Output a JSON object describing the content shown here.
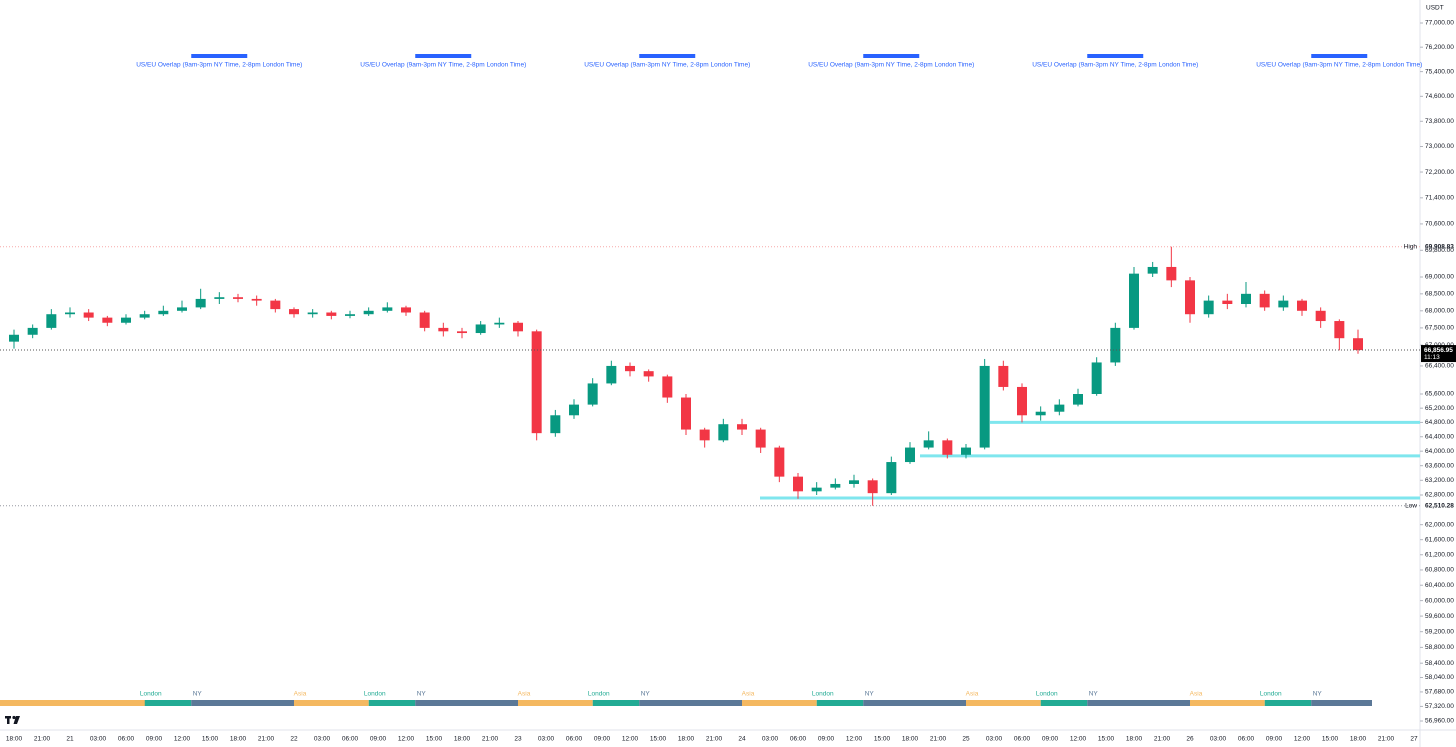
{
  "chart_data": {
    "type": "candlestick",
    "currency": "USDT",
    "log_scale": true,
    "grid": false,
    "up_color": "#089981",
    "down_color": "#f23645",
    "ylim": [
      56960,
      77000
    ],
    "yticks": [
      {
        "value": 77000,
        "label": "77,000.00"
      },
      {
        "value": 76200,
        "label": "76,200.00"
      },
      {
        "value": 75400,
        "label": "75,400.00"
      },
      {
        "value": 74600,
        "label": "74,600.00"
      },
      {
        "value": 73800,
        "label": "73,800.00"
      },
      {
        "value": 73000,
        "label": "73,000.00"
      },
      {
        "value": 72200,
        "label": "72,200.00"
      },
      {
        "value": 71400,
        "label": "71,400.00"
      },
      {
        "value": 70600,
        "label": "70,600.00"
      },
      {
        "value": 69800,
        "label": "69,800.00"
      },
      {
        "value": 69000,
        "label": "69,000.00"
      },
      {
        "value": 68500,
        "label": "68,500.00"
      },
      {
        "value": 68000,
        "label": "68,000.00"
      },
      {
        "value": 67500,
        "label": "67,500.00"
      },
      {
        "value": 67000,
        "label": "67,000.00"
      },
      {
        "value": 66400,
        "label": "66,400.00"
      },
      {
        "value": 65600,
        "label": "65,600.00"
      },
      {
        "value": 65200,
        "label": "65,200.00"
      },
      {
        "value": 64800,
        "label": "64,800.00"
      },
      {
        "value": 64400,
        "label": "64,400.00"
      },
      {
        "value": 64000,
        "label": "64,000.00"
      },
      {
        "value": 63600,
        "label": "63,600.00"
      },
      {
        "value": 63200,
        "label": "63,200.00"
      },
      {
        "value": 62800,
        "label": "62,800.00"
      },
      {
        "value": 62000,
        "label": "62,000.00"
      },
      {
        "value": 61600,
        "label": "61,600.00"
      },
      {
        "value": 61200,
        "label": "61,200.00"
      },
      {
        "value": 60800,
        "label": "60,800.00"
      },
      {
        "value": 60400,
        "label": "60,400.00"
      },
      {
        "value": 60000,
        "label": "60,000.00"
      },
      {
        "value": 59600,
        "label": "59,600.00"
      },
      {
        "value": 59200,
        "label": "59,200.00"
      },
      {
        "value": 58800,
        "label": "58,800.00"
      },
      {
        "value": 58400,
        "label": "58,400.00"
      },
      {
        "value": 58040,
        "label": "58,040.00"
      },
      {
        "value": 57680,
        "label": "57,680.00"
      },
      {
        "value": 57320,
        "label": "57,320.00"
      },
      {
        "value": 56960,
        "label": "56,960.00"
      }
    ],
    "time_labels": [
      "18:00",
      "21:00",
      "21",
      "03:00",
      "06:00",
      "09:00",
      "12:00",
      "15:00",
      "18:00",
      "21:00",
      "22",
      "03:00",
      "06:00",
      "09:00",
      "12:00",
      "15:00",
      "18:00",
      "21:00",
      "23",
      "03:00",
      "06:00",
      "09:00",
      "12:00",
      "15:00",
      "18:00",
      "21:00",
      "24",
      "03:00",
      "06:00",
      "09:00",
      "12:00",
      "15:00",
      "18:00",
      "21:00",
      "25",
      "03:00",
      "06:00",
      "09:00",
      "12:00",
      "15:00",
      "18:00",
      "21:00",
      "26",
      "03:00",
      "06:00",
      "09:00",
      "12:00",
      "15:00",
      "18:00",
      "21:00",
      "27"
    ],
    "open": [
      67100,
      67300,
      67500,
      67900,
      67950,
      67800,
      67650,
      67800,
      67900,
      68000,
      68100,
      68350,
      68400,
      68350,
      68300,
      68050,
      67900,
      67950,
      67850,
      67900,
      68000,
      68100,
      67950,
      67500,
      67400,
      67350,
      67600,
      67650,
      67400,
      64500,
      65000,
      65300,
      65900,
      66400,
      66250,
      66100,
      65500,
      64600,
      64300,
      64750,
      64600,
      64100,
      63300,
      62900,
      63000,
      63100,
      63200,
      62850,
      63700,
      64100,
      64300,
      63900,
      64100,
      66400,
      65800,
      65000,
      65100,
      65300,
      65600,
      66500,
      67500,
      69100,
      69300,
      68900,
      67900,
      68300,
      68200,
      68500,
      68100,
      68300,
      68000,
      67700,
      67200
    ],
    "high": [
      67450,
      67600,
      68050,
      68100,
      68050,
      67850,
      67900,
      68000,
      68150,
      68300,
      68650,
      68550,
      68500,
      68450,
      68350,
      68100,
      68050,
      68000,
      68000,
      68100,
      68250,
      68150,
      68000,
      67650,
      67500,
      67700,
      67800,
      67700,
      67450,
      65150,
      65450,
      66050,
      66550,
      66500,
      66300,
      66150,
      65600,
      64650,
      64900,
      64900,
      64650,
      64150,
      63400,
      63150,
      63250,
      63350,
      63250,
      63850,
      64250,
      64550,
      64350,
      64200,
      66600,
      66550,
      65900,
      65250,
      65450,
      65750,
      66650,
      67650,
      69300,
      69450,
      69908.83,
      69000,
      68450,
      68500,
      68850,
      68600,
      68450,
      68350,
      68100,
      67750,
      67450
    ],
    "low": [
      66900,
      67200,
      67450,
      67800,
      67700,
      67550,
      67600,
      67750,
      67850,
      67950,
      68050,
      68200,
      68250,
      68150,
      67950,
      67800,
      67800,
      67750,
      67780,
      67850,
      67950,
      67850,
      67400,
      67250,
      67200,
      67300,
      67500,
      67250,
      64300,
      64400,
      64900,
      65250,
      65850,
      66100,
      65950,
      65350,
      64450,
      64100,
      64250,
      64450,
      63950,
      63150,
      62700,
      62800,
      62950,
      63000,
      62510.28,
      62800,
      63650,
      64050,
      63800,
      63800,
      64050,
      65700,
      64800,
      64850,
      65000,
      65250,
      65550,
      66400,
      67450,
      69000,
      68700,
      67650,
      67800,
      68050,
      68100,
      68000,
      68000,
      67850,
      67500,
      66850,
      66750
    ],
    "close": [
      67300,
      67500,
      67900,
      67950,
      67800,
      67650,
      67800,
      67900,
      68000,
      68100,
      68350,
      68400,
      68350,
      68300,
      68050,
      67900,
      67950,
      67850,
      67900,
      68000,
      68100,
      67950,
      67500,
      67400,
      67350,
      67600,
      67650,
      67400,
      64500,
      65000,
      65300,
      65900,
      66400,
      66250,
      66100,
      65500,
      64600,
      64300,
      64750,
      64600,
      64100,
      63300,
      62900,
      63000,
      63100,
      63200,
      62850,
      63700,
      64100,
      64300,
      63900,
      64100,
      66400,
      65800,
      65000,
      65100,
      65300,
      65600,
      66500,
      67500,
      69100,
      69300,
      68900,
      67900,
      68300,
      68200,
      68500,
      68100,
      68300,
      68000,
      67700,
      67200,
      66856.95
    ],
    "high_level": {
      "label": "High",
      "value": 69908.83,
      "value_label": "69,908.83"
    },
    "low_level": {
      "label": "Low",
      "value": 62510.28,
      "value_label": "62,510.28"
    },
    "last_price": {
      "value": 66856.95,
      "value_label": "66,856.95",
      "countdown": "11:13"
    },
    "zones": [
      64800,
      63870,
      62720
    ],
    "zone_color": "#7fe6ee",
    "sessions": [
      "London",
      "NY",
      "Asia",
      "London",
      "NY",
      "Asia",
      "London",
      "NY",
      "Asia",
      "London",
      "NY",
      "Asia",
      "London",
      "NY",
      "Asia",
      "London",
      "NY"
    ],
    "session_colors": {
      "Asia": "#f4b860",
      "London": "#22ab94",
      "NY": "#5b7897"
    },
    "overlap_color": "#2962ff",
    "overlaps": [
      "US/EU Overlap (9am-3pm NY Time, 2-8pm London Time)",
      "US/EU Overlap (9am-3pm NY Time, 2-8pm London Time)",
      "US/EU Overlap (9am-3pm NY Time, 2-8pm London Time)",
      "US/EU Overlap (9am-3pm NY Time, 2-8pm London Time)",
      "US/EU Overlap (9am-3pm NY Time, 2-8pm London Time)",
      "US/EU Overlap (9am-3pm NY Time, 2-8pm London Time)"
    ]
  }
}
